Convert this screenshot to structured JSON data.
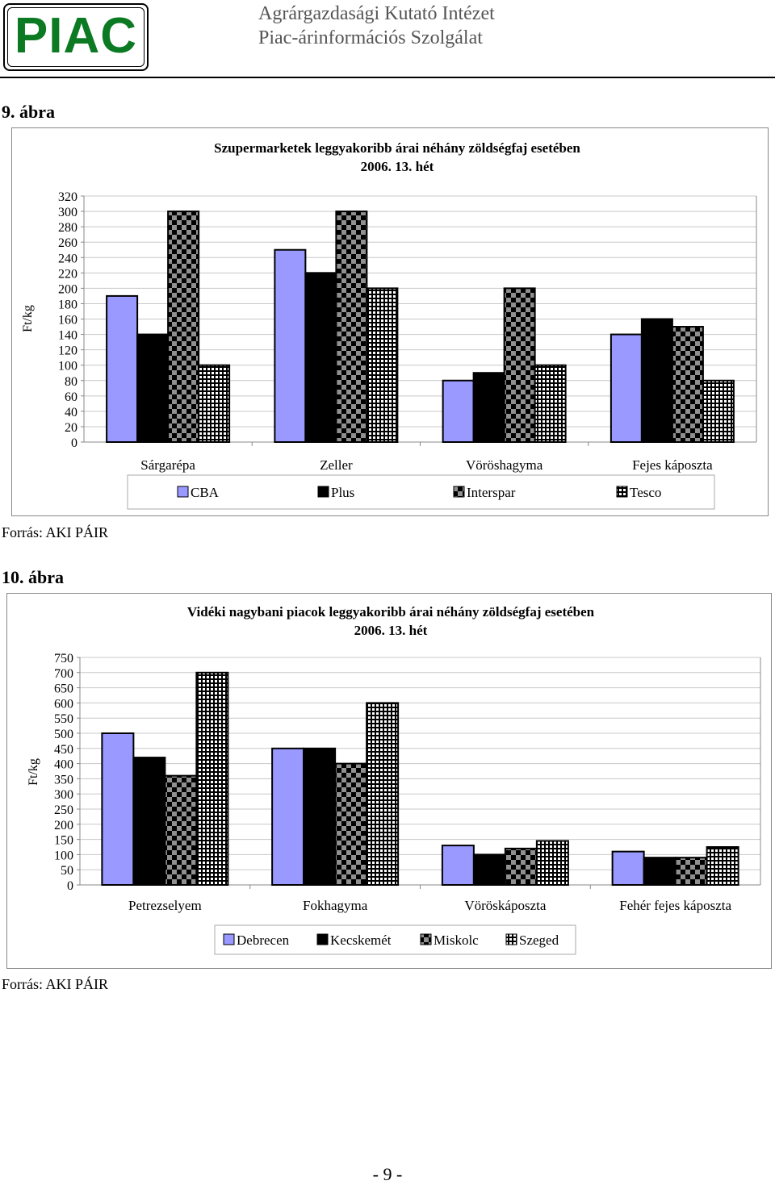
{
  "header": {
    "logo_text": "PIAC",
    "institute_line1": "Agrárgazdasági Kutató Intézet",
    "institute_line2": "Piac-árinformációs Szolgálat"
  },
  "figure9": {
    "label": "9. ábra",
    "source": "Forrás: AKI PÁIR"
  },
  "figure10": {
    "label": "10. ábra",
    "source": "Forrás: AKI PÁIR"
  },
  "page_number": "- 9 -",
  "chart_data": [
    {
      "type": "bar",
      "title": "Szupermarketek leggyakoribb árai néhány zöldségfaj esetében",
      "subtitle": "2006. 13. hét",
      "xlabel": "",
      "ylabel": "Ft/kg",
      "ylim": [
        0,
        320
      ],
      "ytick_step": 20,
      "categories": [
        "Sárgarépa",
        "Zeller",
        "Vöröshagyma",
        "Fejes káposzta"
      ],
      "series": [
        {
          "name": "CBA",
          "values": [
            190,
            250,
            80,
            140
          ],
          "color": "#9999ff",
          "pattern": "solid"
        },
        {
          "name": "Plus",
          "values": [
            140,
            220,
            90,
            160
          ],
          "color": "#000000",
          "pattern": "solid"
        },
        {
          "name": "Interspar",
          "values": [
            300,
            300,
            200,
            150
          ],
          "color": "#808080",
          "pattern": "checker"
        },
        {
          "name": "Tesco",
          "values": [
            100,
            200,
            100,
            80
          ],
          "color": "#000000",
          "pattern": "grid"
        }
      ],
      "grid": true,
      "legend": "bottom"
    },
    {
      "type": "bar",
      "title": "Vidéki nagybani piacok leggyakoribb árai néhány zöldségfaj esetében",
      "subtitle": "2006. 13. hét",
      "xlabel": "",
      "ylabel": "Ft/kg",
      "ylim": [
        0,
        750
      ],
      "ytick_step": 50,
      "categories": [
        "Petrezselyem",
        "Fokhagyma",
        "Vöröskáposzta",
        "Fehér fejes káposzta"
      ],
      "series": [
        {
          "name": "Debrecen",
          "values": [
            500,
            450,
            130,
            110
          ],
          "color": "#9999ff",
          "pattern": "solid"
        },
        {
          "name": "Kecskemét",
          "values": [
            420,
            450,
            100,
            90
          ],
          "color": "#000000",
          "pattern": "solid"
        },
        {
          "name": "Miskolc",
          "values": [
            360,
            400,
            120,
            90
          ],
          "color": "#808080",
          "pattern": "checker"
        },
        {
          "name": "Szeged",
          "values": [
            700,
            600,
            145,
            125
          ],
          "color": "#000000",
          "pattern": "grid"
        }
      ],
      "grid": true,
      "legend": "bottom"
    }
  ]
}
